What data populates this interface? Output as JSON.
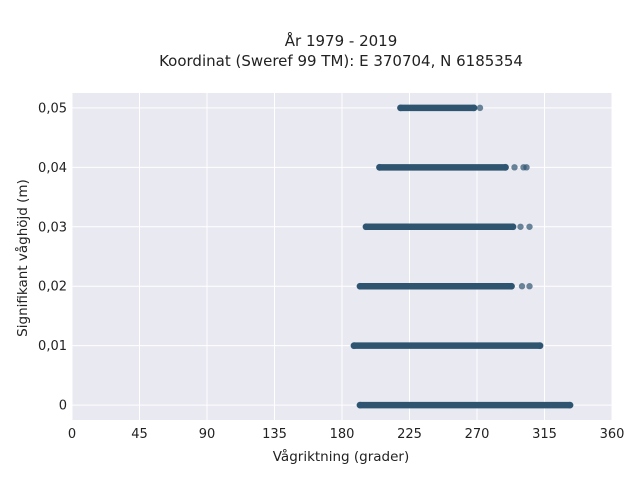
{
  "chart_data": {
    "type": "scatter",
    "title_lines": [
      "År 1979 - 2019",
      "Koordinat (Sweref 99 TM): E 370704, N 6185354"
    ],
    "xlabel": "Vågriktning (grader)",
    "ylabel": "Signifikant våghöjd (m)",
    "xlim": [
      0,
      360
    ],
    "ylim": [
      -0.0025,
      0.0525
    ],
    "x_ticks": [
      0,
      45,
      90,
      135,
      180,
      225,
      270,
      315,
      360
    ],
    "x_tick_labels": [
      "0",
      "45",
      "90",
      "135",
      "180",
      "225",
      "270",
      "315",
      "360"
    ],
    "y_ticks": [
      0,
      0.01,
      0.02,
      0.03,
      0.04,
      0.05
    ],
    "y_tick_labels": [
      "0",
      "0,01",
      "0,02",
      "0,03",
      "0,04",
      "0,05"
    ],
    "grid": true,
    "background_color": "#e9e9f1",
    "point_color": "#2e5470",
    "bands": [
      {
        "y": 0.0,
        "x_min": 192,
        "x_max": 332,
        "outliers": []
      },
      {
        "y": 0.01,
        "x_min": 188,
        "x_max": 312,
        "outliers": []
      },
      {
        "y": 0.02,
        "x_min": 192,
        "x_max": 293,
        "outliers": [
          300,
          305
        ]
      },
      {
        "y": 0.03,
        "x_min": 196,
        "x_max": 294,
        "outliers": [
          299,
          305
        ]
      },
      {
        "y": 0.04,
        "x_min": 205,
        "x_max": 289,
        "outliers": [
          295,
          301,
          303
        ]
      },
      {
        "y": 0.05,
        "x_min": 219,
        "x_max": 268,
        "outliers": [
          272
        ]
      }
    ]
  }
}
